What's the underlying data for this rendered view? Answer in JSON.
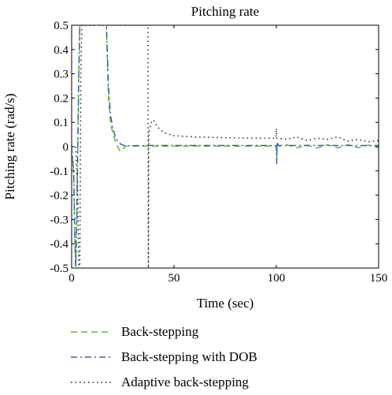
{
  "chart_data": {
    "type": "line",
    "title": "Pitching rate",
    "xlabel": "Time (sec)",
    "ylabel": "Pitching rate (rad/s)",
    "xlim": [
      0,
      150
    ],
    "ylim": [
      -0.5,
      0.5
    ],
    "xticks": [
      "0",
      "50",
      "100",
      "150"
    ],
    "yticks": [
      "-0.5",
      "-0.4",
      "-0.3",
      "-0.2",
      "-0.1",
      "0",
      "0.1",
      "0.2",
      "0.3",
      "0.4",
      "0.5"
    ],
    "grid": false,
    "legend_position": "below",
    "series": [
      {
        "name": "Back-stepping",
        "color": "#5ab833",
        "dash": "dashed",
        "x": [
          0,
          1,
          1.5,
          2,
          2.5,
          3,
          3.5,
          4,
          4.5,
          5,
          17,
          18,
          19,
          20,
          21,
          22,
          23,
          24,
          25,
          26,
          28,
          30,
          35,
          40,
          60,
          80,
          95,
          100,
          100.2,
          100.4,
          101,
          105,
          110,
          115,
          120,
          125,
          130,
          135,
          140,
          145,
          150
        ],
        "y": [
          0,
          -0.1,
          -0.35,
          -0.5,
          -0.3,
          0.0,
          0.3,
          0.5,
          0.5,
          0.5,
          0.5,
          0.2,
          0.1,
          0.06,
          0.03,
          0.01,
          -0.01,
          -0.02,
          -0.01,
          0.0,
          0.004,
          0.003,
          0.003,
          0.002,
          0.002,
          0.002,
          0.002,
          0.003,
          -0.05,
          0.015,
          0.003,
          0.008,
          -0.005,
          0.006,
          -0.006,
          0.008,
          -0.005,
          0.008,
          -0.004,
          0.006,
          -0.005
        ]
      },
      {
        "name": "Back-stepping with DOB",
        "color": "#3c5fb0",
        "dash": "dashdot",
        "x": [
          0,
          1,
          1.5,
          2,
          2.5,
          3,
          3.5,
          4,
          5,
          17,
          18,
          19,
          20,
          21,
          22,
          24,
          26,
          30,
          40,
          60,
          80,
          95,
          100,
          100.2,
          100.4,
          101,
          110,
          120,
          130,
          140,
          150
        ],
        "y": [
          0,
          -0.1,
          -0.35,
          -0.5,
          -0.3,
          0.0,
          0.3,
          0.5,
          0.5,
          0.5,
          0.25,
          0.13,
          0.08,
          0.05,
          0.03,
          0.01,
          0.004,
          0.004,
          0.005,
          0.005,
          0.005,
          0.005,
          0.005,
          -0.07,
          0.02,
          0.005,
          0.005,
          0.005,
          0.005,
          0.005,
          0.005
        ]
      },
      {
        "name": "Adaptive back-stepping",
        "color": "#222222",
        "dash": "dotted",
        "x": [
          0,
          2,
          3,
          3.5,
          4,
          4.5,
          5,
          5.5,
          6,
          7,
          37.3,
          37.5,
          37.7,
          38,
          39,
          40,
          41,
          42,
          44,
          46,
          50,
          60,
          70,
          80,
          90,
          99.7,
          100,
          100.3,
          101,
          105,
          110,
          115,
          120,
          125,
          130,
          135,
          140,
          145,
          150
        ],
        "y": [
          0,
          0,
          -0.2,
          -0.5,
          -0.5,
          0.3,
          0.5,
          0.5,
          0.5,
          0.5,
          0.5,
          -0.5,
          0.05,
          0.07,
          0.1,
          0.11,
          0.095,
          0.08,
          0.065,
          0.055,
          0.045,
          0.04,
          0.038,
          0.036,
          0.035,
          0.035,
          0.075,
          0.035,
          0.035,
          0.03,
          0.04,
          0.025,
          0.035,
          0.03,
          0.04,
          0.022,
          0.03,
          0.02,
          0.025
        ]
      }
    ]
  }
}
